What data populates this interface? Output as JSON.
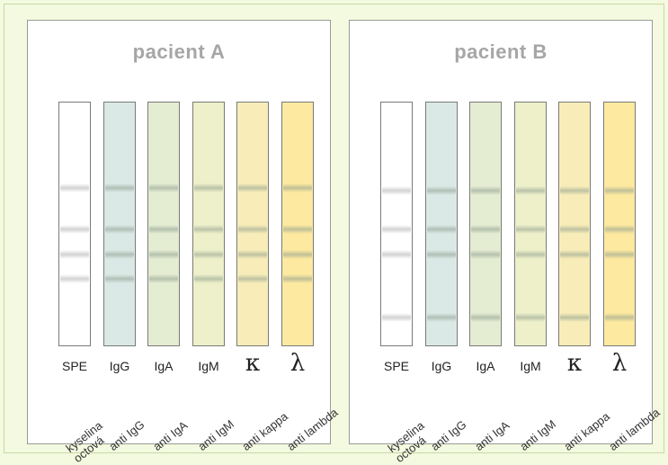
{
  "patients": [
    {
      "title": "pacient A",
      "lanes": [
        {
          "label": "SPE",
          "color": "#ffffff",
          "bands": [
            0.35,
            0.52,
            0.62,
            0.72
          ]
        },
        {
          "label": "IgG",
          "color": "#dbe9e6",
          "bands": [
            0.35,
            0.52,
            0.62,
            0.72
          ]
        },
        {
          "label": "IgA",
          "color": "#e4ecd2",
          "bands": [
            0.35,
            0.52,
            0.62,
            0.72
          ]
        },
        {
          "label": "IgM",
          "color": "#eef0ca",
          "bands": [
            0.35,
            0.52,
            0.62,
            0.72
          ]
        },
        {
          "label": "κ",
          "color": "#f8edb8",
          "bands": [
            0.35,
            0.52,
            0.62,
            0.72
          ]
        },
        {
          "label": "λ",
          "color": "#fde9a0",
          "bands": [
            0.35,
            0.52,
            0.62,
            0.72
          ]
        }
      ],
      "antibodies": [
        "kyselina\noctová",
        "anti IgG",
        "anti IgA",
        "anti IgM",
        "anti kappa",
        "anti lambda"
      ]
    },
    {
      "title": "pacient B",
      "lanes": [
        {
          "label": "SPE",
          "color": "#ffffff",
          "bands": [
            0.36,
            0.52,
            0.62,
            0.88
          ]
        },
        {
          "label": "IgG",
          "color": "#dbe9e6",
          "bands": [
            0.36,
            0.52,
            0.62,
            0.88
          ]
        },
        {
          "label": "IgA",
          "color": "#e4ecd2",
          "bands": [
            0.36,
            0.52,
            0.62,
            0.88
          ]
        },
        {
          "label": "IgM",
          "color": "#eef0ca",
          "bands": [
            0.36,
            0.52,
            0.62,
            0.88
          ]
        },
        {
          "label": "κ",
          "color": "#f8edb8",
          "bands": [
            0.36,
            0.52,
            0.62,
            0.88
          ]
        },
        {
          "label": "λ",
          "color": "#fde9a0",
          "bands": [
            0.36,
            0.52,
            0.62,
            0.88
          ]
        }
      ],
      "antibodies": [
        "kyselina\noctová",
        "anti IgG",
        "anti IgA",
        "anti IgM",
        "anti kappa",
        "anti lambda"
      ]
    }
  ],
  "colors": {
    "background": "#f3fadf",
    "panel_border": "#9a9a9a",
    "title": "#a6a6a6",
    "band_spe": "#c8c8c8",
    "band_ig": "#8f9f8f"
  }
}
